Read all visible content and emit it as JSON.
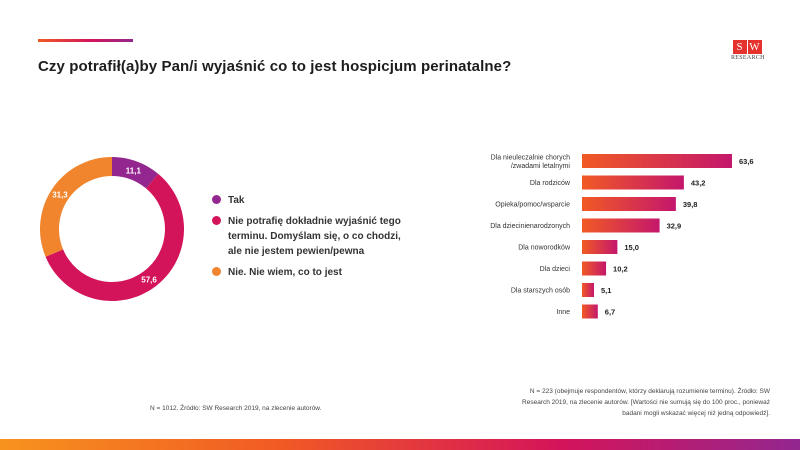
{
  "title": "Czy potrafił(a)by Pan/i wyjaśnić co to jest hospicjum perinatalne?",
  "logo": {
    "letters": [
      "S",
      "W"
    ],
    "sub": "RESEARCH"
  },
  "colors": {
    "purple": "#93278f",
    "pink": "#d4145a",
    "orange": "#f0852d",
    "bar_start": "#f15a24",
    "bar_end": "#c4176c"
  },
  "chart_data": [
    {
      "type": "pie",
      "categories": [
        "Tak",
        "Nie potrafię dokładnie wyjaśnić tego terminu. Domyślam się, o co chodzi, ale nie jestem pewien/pewna",
        "Nie. Nie wiem, co to jest"
      ],
      "values": [
        11.1,
        57.6,
        31.3
      ],
      "value_labels": [
        "11,1",
        "57,6",
        "31,3"
      ],
      "colors": [
        "#93278f",
        "#d4145a",
        "#f0852d"
      ],
      "legend_position": "right"
    },
    {
      "type": "bar",
      "orientation": "horizontal",
      "categories": [
        [
          "Dla nieuleczalnie chorych",
          "/zwadami letalnymi"
        ],
        [
          "Dla rodziców"
        ],
        [
          "Opieka/pomoc/wsparcie"
        ],
        [
          "Dla dziecinienarodzonych"
        ],
        [
          "Dla noworodków"
        ],
        [
          "Dla dzieci"
        ],
        [
          "Dla starszych osób"
        ],
        [
          "Inne"
        ]
      ],
      "values": [
        63.6,
        43.2,
        39.8,
        32.9,
        15.0,
        10.2,
        5.1,
        6.7
      ],
      "value_labels": [
        "63,6",
        "43,2",
        "39,8",
        "32,9",
        "15,0",
        "10,2",
        "5,1",
        "6,7"
      ],
      "xlim": [
        0,
        63.6
      ]
    }
  ],
  "notes": {
    "left": "N = 1012. Źródło: SW Research 2019, na zlecenie autorów.",
    "right": [
      "N = 223 (obejmuje respondentów, którzy deklarują rozumienie terminu). Źródło: SW",
      "Research 2019, na zlecenie autorów. [Wartości nie sumują się do 100 proc., ponieważ",
      "badani mogli wskazać więcej niż jedną odpowiedź]."
    ]
  }
}
